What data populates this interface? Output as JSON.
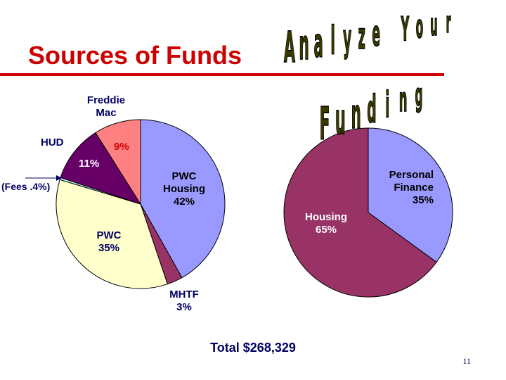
{
  "slide": {
    "title": "Sources of Funds",
    "total": "Total $268,329",
    "page_number": "11",
    "wordart_line1": "Analyze Your",
    "wordart_line2": "Funding"
  },
  "colors": {
    "title_red": "#cc0000",
    "label_navy": "#000066",
    "pwc_housing": "#9999ff",
    "mhtf": "#993366",
    "pwc": "#ffffcc",
    "fees": "#ccffff",
    "hud": "#660066",
    "freddie_mac": "#ff8080",
    "personal_finance": "#9999ff",
    "housing": "#993366"
  },
  "chart_data": [
    {
      "type": "pie",
      "title": "",
      "categories": [
        "PWC Housing",
        "MHTF",
        "PWC",
        "Fees",
        "HUD",
        "Freddie Mac"
      ],
      "values": [
        42,
        3,
        35,
        0.4,
        11,
        9
      ],
      "labels": {
        "pwc_housing": [
          "PWC",
          "Housing",
          "42%"
        ],
        "mhtf": [
          "MHTF",
          "3%"
        ],
        "pwc": [
          "PWC",
          "35%"
        ],
        "fees": "(Fees .4%)",
        "hud_name": "HUD",
        "hud_value": "11%",
        "freddie_name": [
          "Freddie",
          "Mac"
        ],
        "freddie_value": "9%"
      }
    },
    {
      "type": "pie",
      "title": "",
      "categories": [
        "Personal Finance",
        "Housing"
      ],
      "values": [
        35,
        65
      ],
      "labels": {
        "personal_finance": [
          "Personal",
          "Finance",
          "35%"
        ],
        "housing": [
          "Housing",
          "65%"
        ]
      }
    }
  ]
}
